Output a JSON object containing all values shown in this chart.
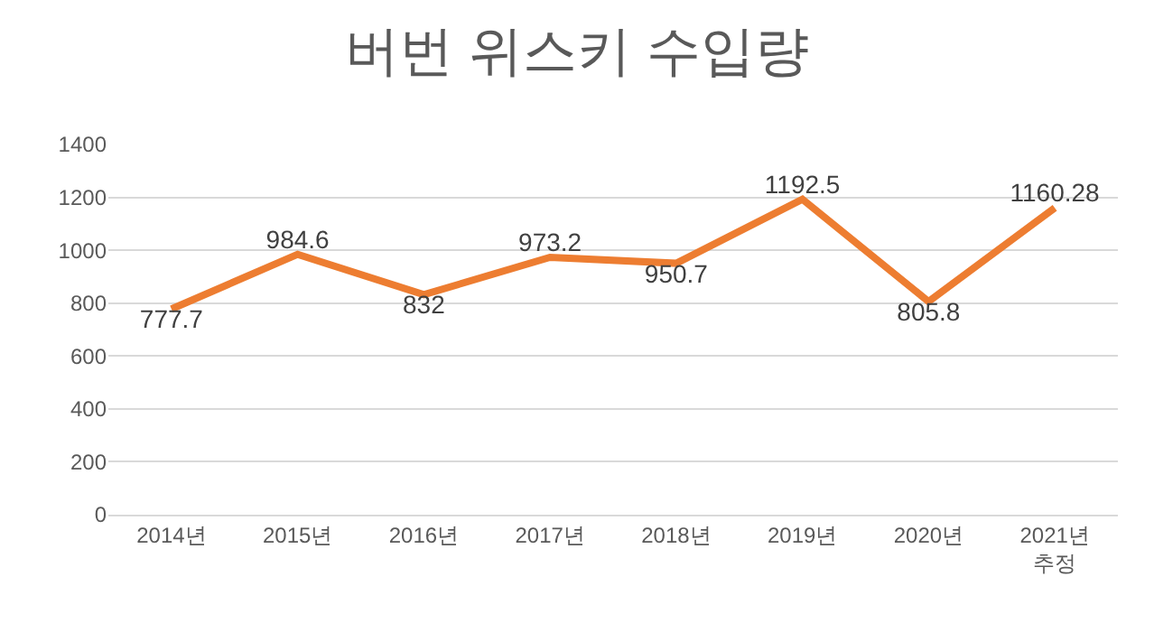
{
  "chart_data": {
    "type": "line",
    "title": "버번 위스키 수입량",
    "categories": [
      "2014년",
      "2015년",
      "2016년",
      "2017년",
      "2018년",
      "2019년",
      "2020년",
      "2021년\n추정"
    ],
    "series": [
      {
        "color": "#ed7d31",
        "values": [
          777.7,
          984.6,
          832,
          973.2,
          950.7,
          1192.5,
          805.8,
          1160.28
        ]
      }
    ],
    "ylim": [
      0,
      1400
    ],
    "yticks": [
      0,
      200,
      400,
      600,
      800,
      1000,
      1200,
      1400
    ],
    "grid": "y",
    "marker": "none",
    "line_style": "solid",
    "data_labels": true
  }
}
